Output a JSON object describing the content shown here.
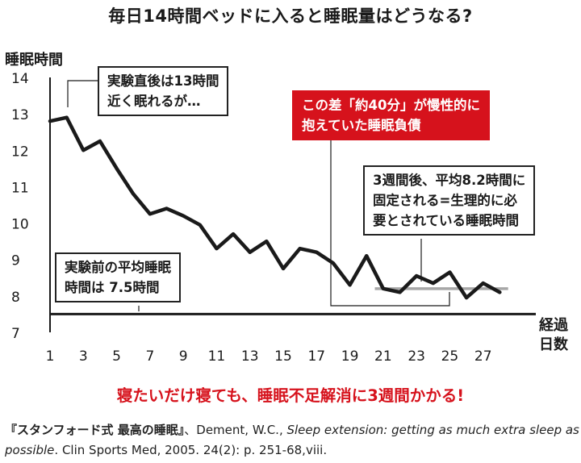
{
  "title": "毎日14時間ベッドに入ると睡眠量はどうなる?",
  "notes": {
    "right_after": [
      "実験直後は13時間",
      "近く眠れるが…"
    ],
    "debt": [
      "この差「約40分」が慢性的に",
      "抱えていた睡眠負債"
    ],
    "after3w": [
      "3週間後、平均8.2時間に",
      "固定される=生理的に必",
      "要とされている睡眠時間"
    ],
    "before": [
      "実験前の平均睡眠",
      "時間は 7.5時間"
    ]
  },
  "conclusion": "寝たいだけ寝ても、睡眠不足解消に3週間かかる!",
  "citation": {
    "book": "『スタンフォード式 最高の睡眠』",
    "authors": "、Dement, W.C., ",
    "article": "Sleep extension: getting as much extra sleep as possible",
    "journal": ". Clin Sports Med, 2005. 24(2): p. 251-68,viii."
  },
  "colors": {
    "line": "#1a1a1a",
    "reference": "#a6a6a6",
    "accent": "#d6121c"
  },
  "chart_data": {
    "type": "line",
    "title": "毎日14時間ベッドに入ると睡眠量はどうなる?",
    "xlabel": "経過日数",
    "ylabel": "睡眠時間",
    "xlim": [
      1,
      29
    ],
    "ylim": [
      7,
      14
    ],
    "x_ticks": [
      1,
      3,
      5,
      7,
      9,
      11,
      13,
      15,
      17,
      19,
      21,
      23,
      25,
      27
    ],
    "y_ticks": [
      7,
      8,
      9,
      10,
      11,
      12,
      13,
      14
    ],
    "grid": false,
    "series": [
      {
        "x": [
          1,
          2,
          3,
          4,
          5,
          6,
          7,
          8,
          9,
          10,
          11,
          12,
          13,
          14,
          15,
          16,
          17,
          18,
          19,
          20,
          21,
          22,
          23,
          24,
          25,
          26,
          27,
          28
        ],
        "y": [
          12.8,
          12.9,
          12.0,
          12.25,
          11.5,
          10.8,
          10.25,
          10.4,
          10.2,
          9.95,
          9.3,
          9.7,
          9.2,
          9.5,
          8.75,
          9.3,
          9.2,
          8.9,
          8.3,
          9.1,
          8.2,
          8.1,
          8.55,
          8.35,
          8.65,
          7.95,
          8.35,
          8.1
        ]
      }
    ],
    "reference_lines": [
      {
        "y": 7.5,
        "x_range": [
          1,
          29
        ]
      },
      {
        "y": 8.2,
        "x_range": [
          20.5,
          28.5
        ]
      }
    ]
  }
}
